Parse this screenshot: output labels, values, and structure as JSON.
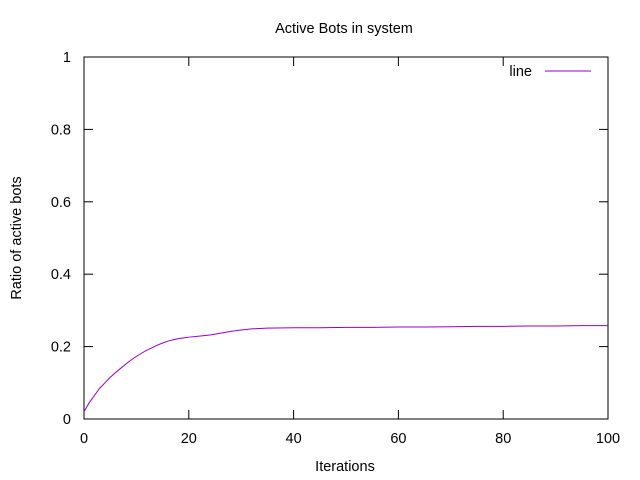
{
  "chart_data": {
    "type": "line",
    "title": "Active Bots in system",
    "xlabel": "Iterations",
    "ylabel": "Ratio of active bots",
    "xlim": [
      0,
      100
    ],
    "ylim": [
      0,
      1
    ],
    "xticks": [
      {
        "value": 0,
        "label": "0"
      },
      {
        "value": 20,
        "label": "20"
      },
      {
        "value": 40,
        "label": "40"
      },
      {
        "value": 60,
        "label": "60"
      },
      {
        "value": 80,
        "label": "80"
      },
      {
        "value": 100,
        "label": "100"
      }
    ],
    "yticks": [
      {
        "value": 0,
        "label": "0"
      },
      {
        "value": 0.2,
        "label": "0.2"
      },
      {
        "value": 0.4,
        "label": "0.4"
      },
      {
        "value": 0.6,
        "label": "0.6"
      },
      {
        "value": 0.8,
        "label": "0.8"
      },
      {
        "value": 1,
        "label": "1"
      }
    ],
    "grid": false,
    "legend_position": "top-right",
    "series": [
      {
        "name": "line",
        "color": "#9400d3",
        "x": [
          0,
          1,
          2,
          3,
          4,
          5,
          6,
          7,
          8,
          9,
          10,
          11,
          12,
          13,
          14,
          15,
          16,
          17,
          18,
          19,
          20,
          22,
          24,
          26,
          28,
          30,
          32,
          35,
          40,
          45,
          50,
          55,
          60,
          65,
          70,
          75,
          80,
          85,
          90,
          95,
          100
        ],
        "y": [
          0.02,
          0.045,
          0.065,
          0.085,
          0.1,
          0.115,
          0.128,
          0.14,
          0.152,
          0.163,
          0.173,
          0.182,
          0.19,
          0.197,
          0.204,
          0.21,
          0.215,
          0.219,
          0.222,
          0.224,
          0.226,
          0.229,
          0.232,
          0.237,
          0.242,
          0.246,
          0.249,
          0.251,
          0.252,
          0.252,
          0.253,
          0.253,
          0.254,
          0.254,
          0.255,
          0.256,
          0.256,
          0.257,
          0.257,
          0.258,
          0.258
        ]
      }
    ]
  }
}
